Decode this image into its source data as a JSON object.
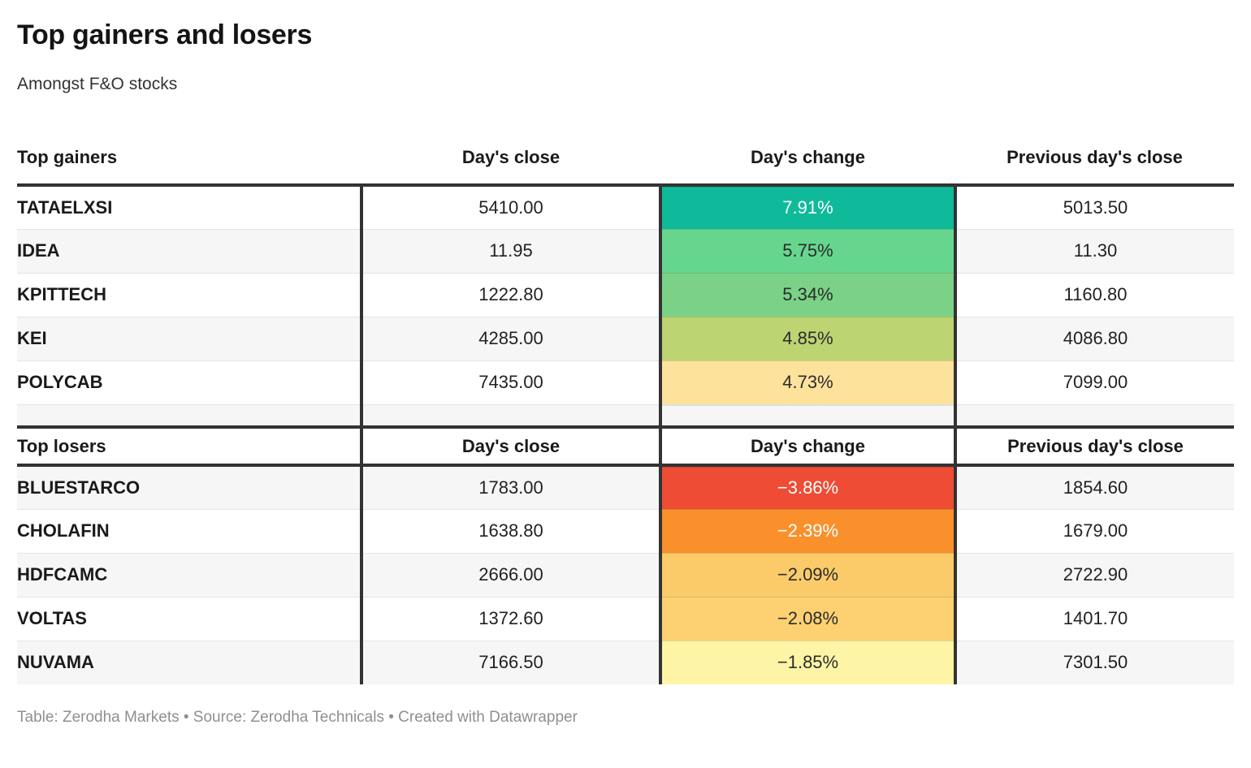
{
  "chart_data": {
    "type": "table",
    "title": "Top gainers and losers",
    "subtitle": "Amongst F&O stocks",
    "accent_border_color": "#333333",
    "zebra_row_color": "#f6f6f6",
    "sections": [
      {
        "id": "gainers",
        "header": [
          "Top gainers",
          "Day's close",
          "Day's change",
          "Previous day's close"
        ],
        "rows": [
          {
            "symbol": "TATAELXSI",
            "days_close": "5410.00",
            "days_change": "7.91%",
            "change_color": "#0fba9b",
            "change_text_color": "#ffffff",
            "previous_close": "5013.50"
          },
          {
            "symbol": "IDEA",
            "days_close": "11.95",
            "days_change": "5.75%",
            "change_color": "#66d68e",
            "change_text_color": "#2b2b2b",
            "previous_close": "11.30"
          },
          {
            "symbol": "KPITTECH",
            "days_close": "1222.80",
            "days_change": "5.34%",
            "change_color": "#7bd287",
            "change_text_color": "#2b2b2b",
            "previous_close": "1160.80"
          },
          {
            "symbol": "KEI",
            "days_close": "4285.00",
            "days_change": "4.85%",
            "change_color": "#bcd472",
            "change_text_color": "#2b2b2b",
            "previous_close": "4086.80"
          },
          {
            "symbol": "POLYCAB",
            "days_close": "7435.00",
            "days_change": "4.73%",
            "change_color": "#fde29c",
            "change_text_color": "#2b2b2b",
            "previous_close": "7099.00"
          }
        ]
      },
      {
        "id": "losers",
        "header": [
          "Top losers",
          "Day's close",
          "Day's change",
          "Previous day's close"
        ],
        "rows": [
          {
            "symbol": "BLUESTARCO",
            "days_close": "1783.00",
            "days_change": "−3.86%",
            "change_color": "#ee4c35",
            "change_text_color": "#ffffff",
            "previous_close": "1854.60"
          },
          {
            "symbol": "CHOLAFIN",
            "days_close": "1638.80",
            "days_change": "−2.39%",
            "change_color": "#f9902c",
            "change_text_color": "#ffffff",
            "previous_close": "1679.00"
          },
          {
            "symbol": "HDFCAMC",
            "days_close": "2666.00",
            "days_change": "−2.09%",
            "change_color": "#fbcb6a",
            "change_text_color": "#2b2b2b",
            "previous_close": "2722.90"
          },
          {
            "symbol": "VOLTAS",
            "days_close": "1372.60",
            "days_change": "−2.08%",
            "change_color": "#fdd172",
            "change_text_color": "#2b2b2b",
            "previous_close": "1401.70"
          },
          {
            "symbol": "NUVAMA",
            "days_close": "7166.50",
            "days_change": "−1.85%",
            "change_color": "#fdf4a5",
            "change_text_color": "#2b2b2b",
            "previous_close": "7301.50"
          }
        ]
      }
    ],
    "footer": "Table: Zerodha Markets • Source: Zerodha Technicals • Created with Datawrapper"
  }
}
